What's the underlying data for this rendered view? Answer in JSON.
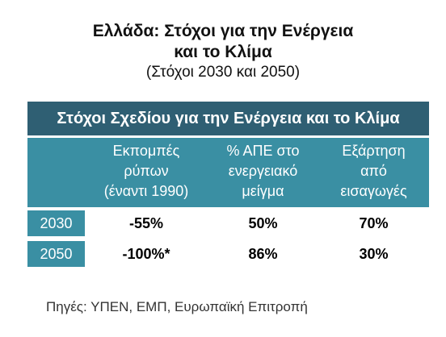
{
  "title": {
    "line1": "Ελλάδα: Στόχοι για την Ενέργεια",
    "line2": "και το Κλίμα",
    "subtitle": "(Στόχοι 2030 και 2050)"
  },
  "table": {
    "banner": "Στόχοι Σχεδίου για την Ενέργεια και το Κλίμα",
    "headers": [
      {
        "lines": [
          "Εκπομπές",
          "ρύπων",
          "(έναντι 1990)"
        ]
      },
      {
        "lines": [
          "% ΑΠΕ στο",
          "ενεργειακό",
          "μείγμα"
        ]
      },
      {
        "lines": [
          "Εξάρτηση",
          "από",
          "εισαγωγές"
        ]
      }
    ],
    "rows": [
      {
        "year": "2030",
        "values": [
          "-55%",
          "50%",
          "70%"
        ]
      },
      {
        "year": "2050",
        "values": [
          "-100%*",
          "86%",
          "30%"
        ]
      }
    ]
  },
  "source": "Πηγές:   ΥΠΕΝ, ΕΜΠ, Ευρωπαϊκή Επιτροπή",
  "colors": {
    "banner": "#2f5f73",
    "header": "#3a8fa3"
  }
}
